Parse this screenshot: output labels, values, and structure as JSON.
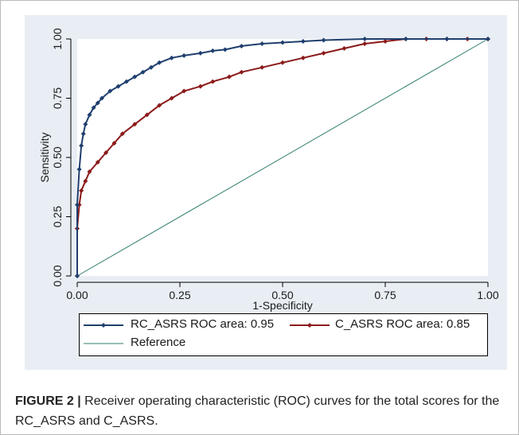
{
  "caption": {
    "label": "FIGURE 2 |",
    "text": "Receiver operating characteristic (ROC) curves for the total scores for the RC_ASRS and C_ASRS."
  },
  "colors": {
    "background": "#e8eef3",
    "rc_asrs": "#1f3f6e",
    "c_asrs": "#8b1a1a",
    "reference": "#2f7d6d"
  },
  "chart_data": {
    "type": "line",
    "xlabel": "1-Specificity",
    "ylabel": "Sensitivity",
    "xlim": [
      0,
      1
    ],
    "ylim": [
      0,
      1
    ],
    "x_ticks": [
      "0.00",
      "0.25",
      "0.50",
      "0.75",
      "1.00"
    ],
    "y_ticks": [
      "0.00",
      "0.25",
      "0.50",
      "0.75",
      "1.00"
    ],
    "legend_position": "bottom",
    "series": [
      {
        "name": "RC_ASRS ROC area: 0.95",
        "marker": "diamond",
        "points": [
          [
            0,
            0
          ],
          [
            0,
            0.3
          ],
          [
            0.005,
            0.45
          ],
          [
            0.01,
            0.55
          ],
          [
            0.015,
            0.6
          ],
          [
            0.02,
            0.64
          ],
          [
            0.03,
            0.68
          ],
          [
            0.04,
            0.71
          ],
          [
            0.05,
            0.73
          ],
          [
            0.06,
            0.75
          ],
          [
            0.08,
            0.78
          ],
          [
            0.1,
            0.8
          ],
          [
            0.12,
            0.82
          ],
          [
            0.14,
            0.84
          ],
          [
            0.16,
            0.86
          ],
          [
            0.18,
            0.88
          ],
          [
            0.2,
            0.9
          ],
          [
            0.23,
            0.92
          ],
          [
            0.26,
            0.93
          ],
          [
            0.3,
            0.94
          ],
          [
            0.33,
            0.95
          ],
          [
            0.36,
            0.955
          ],
          [
            0.4,
            0.97
          ],
          [
            0.45,
            0.98
          ],
          [
            0.5,
            0.985
          ],
          [
            0.55,
            0.99
          ],
          [
            0.6,
            0.995
          ],
          [
            0.7,
            1.0
          ],
          [
            0.8,
            1.0
          ],
          [
            0.9,
            1.0
          ],
          [
            1.0,
            1.0
          ]
        ]
      },
      {
        "name": "C_ASRS ROC area: 0.85",
        "marker": "diamond",
        "points": [
          [
            0,
            0
          ],
          [
            0,
            0.2
          ],
          [
            0.005,
            0.3
          ],
          [
            0.01,
            0.36
          ],
          [
            0.02,
            0.4
          ],
          [
            0.03,
            0.44
          ],
          [
            0.05,
            0.48
          ],
          [
            0.07,
            0.52
          ],
          [
            0.09,
            0.56
          ],
          [
            0.11,
            0.6
          ],
          [
            0.14,
            0.64
          ],
          [
            0.17,
            0.68
          ],
          [
            0.2,
            0.72
          ],
          [
            0.23,
            0.75
          ],
          [
            0.26,
            0.78
          ],
          [
            0.3,
            0.8
          ],
          [
            0.33,
            0.82
          ],
          [
            0.37,
            0.84
          ],
          [
            0.4,
            0.86
          ],
          [
            0.45,
            0.88
          ],
          [
            0.5,
            0.9
          ],
          [
            0.55,
            0.92
          ],
          [
            0.6,
            0.94
          ],
          [
            0.65,
            0.96
          ],
          [
            0.7,
            0.98
          ],
          [
            0.75,
            0.99
          ],
          [
            0.8,
            1.0
          ],
          [
            0.85,
            1.0
          ],
          [
            0.9,
            1.0
          ],
          [
            0.95,
            1.0
          ],
          [
            1.0,
            1.0
          ]
        ]
      },
      {
        "name": "Reference",
        "marker": "none",
        "points": [
          [
            0,
            0
          ],
          [
            1,
            1
          ]
        ]
      }
    ]
  }
}
